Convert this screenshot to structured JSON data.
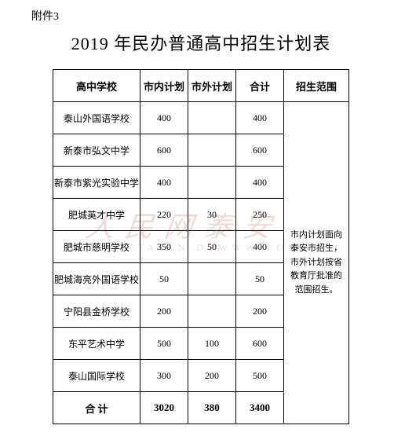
{
  "attachment_label": "附件3",
  "title": "2019 年民办普通高中招生计划表",
  "watermark": {
    "main": "人民网泰安",
    "sub": "TAIAN.DZWWW.COM"
  },
  "table": {
    "headers": {
      "school": "高中学校",
      "city_plan": "市内计划",
      "out_plan": "市外计划",
      "total": "合计",
      "scope": "招生范围"
    },
    "columns": {
      "widths": {
        "school": 110,
        "num": 60,
        "scope": 82
      }
    },
    "rows": [
      {
        "school": "泰山外国语学校",
        "city_plan": "400",
        "out_plan": "",
        "total": "400"
      },
      {
        "school": "新泰市弘文中学",
        "city_plan": "600",
        "out_plan": "",
        "total": "600"
      },
      {
        "school": "新泰市紫光实验中学",
        "city_plan": "400",
        "out_plan": "",
        "total": "400"
      },
      {
        "school": "肥城英才中学",
        "city_plan": "220",
        "out_plan": "30",
        "total": "250"
      },
      {
        "school": "肥城市慈明学校",
        "city_plan": "350",
        "out_plan": "50",
        "total": "400"
      },
      {
        "school": "肥城海亮外国语学校",
        "city_plan": "50",
        "out_plan": "",
        "total": "50"
      },
      {
        "school": "宁阳县金桥学校",
        "city_plan": "200",
        "out_plan": "",
        "total": "200"
      },
      {
        "school": "东平艺术中学",
        "city_plan": "500",
        "out_plan": "100",
        "total": "600"
      },
      {
        "school": "泰山国际学校",
        "city_plan": "300",
        "out_plan": "200",
        "total": "500"
      }
    ],
    "total_row": {
      "label": "合  计",
      "city_plan": "3020",
      "out_plan": "380",
      "total": "3400"
    },
    "scope_text": "市内计划面向泰安市招生，市外计划按省教育厅批准的范围招生。"
  },
  "colors": {
    "text": "#000000",
    "border": "#000000",
    "background": "#ffffff",
    "watermark": "#f0d9d9"
  },
  "fonts": {
    "body_family": "SimSun",
    "watermark_family": "KaiTi",
    "title_size_pt": 16,
    "header_size_pt": 10,
    "cell_size_pt": 9
  }
}
